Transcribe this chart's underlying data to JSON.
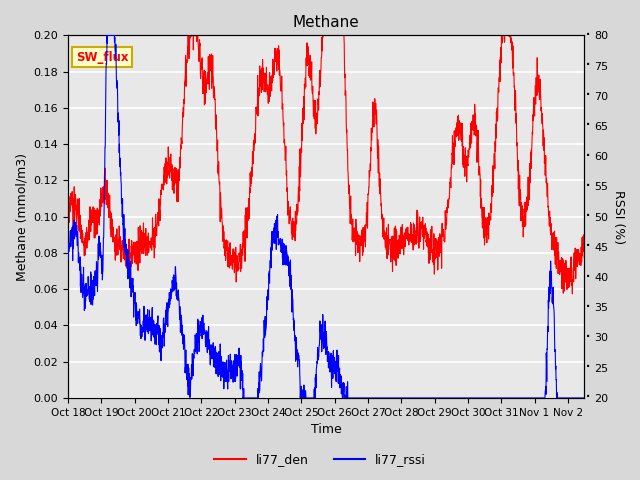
{
  "title": "Methane",
  "ylabel_left": "Methane (mmol/m3)",
  "ylabel_right": "RSSI (%)",
  "xlabel": "Time",
  "ylim_left": [
    0.0,
    0.2
  ],
  "ylim_right": [
    20,
    80
  ],
  "yticks_left": [
    0.0,
    0.02,
    0.04,
    0.06,
    0.08,
    0.1,
    0.12,
    0.14,
    0.16,
    0.18,
    0.2
  ],
  "yticks_right": [
    20,
    25,
    30,
    35,
    40,
    45,
    50,
    55,
    60,
    65,
    70,
    75,
    80
  ],
  "xtick_labels": [
    "Oct 18",
    "Oct 19",
    "Oct 20",
    "Oct 21",
    "Oct 22",
    "Oct 23",
    "Oct 24",
    "Oct 25",
    "Oct 26",
    "Oct 27",
    "Oct 28",
    "Oct 29",
    "Oct 30",
    "Oct 31",
    "Nov 1",
    "Nov 2"
  ],
  "annotation_text": "SW_flux",
  "annotation_bg": "#ffffcc",
  "annotation_border": "#ccaa00",
  "line_red_color": "red",
  "line_blue_color": "blue",
  "legend_labels": [
    "li77_den",
    "li77_rssi"
  ],
  "fig_bg_color": "#d8d8d8",
  "plot_bg_color": "#e8e8e8",
  "grid_color": "white",
  "title_fontsize": 11,
  "axis_fontsize": 9,
  "tick_fontsize": 8
}
